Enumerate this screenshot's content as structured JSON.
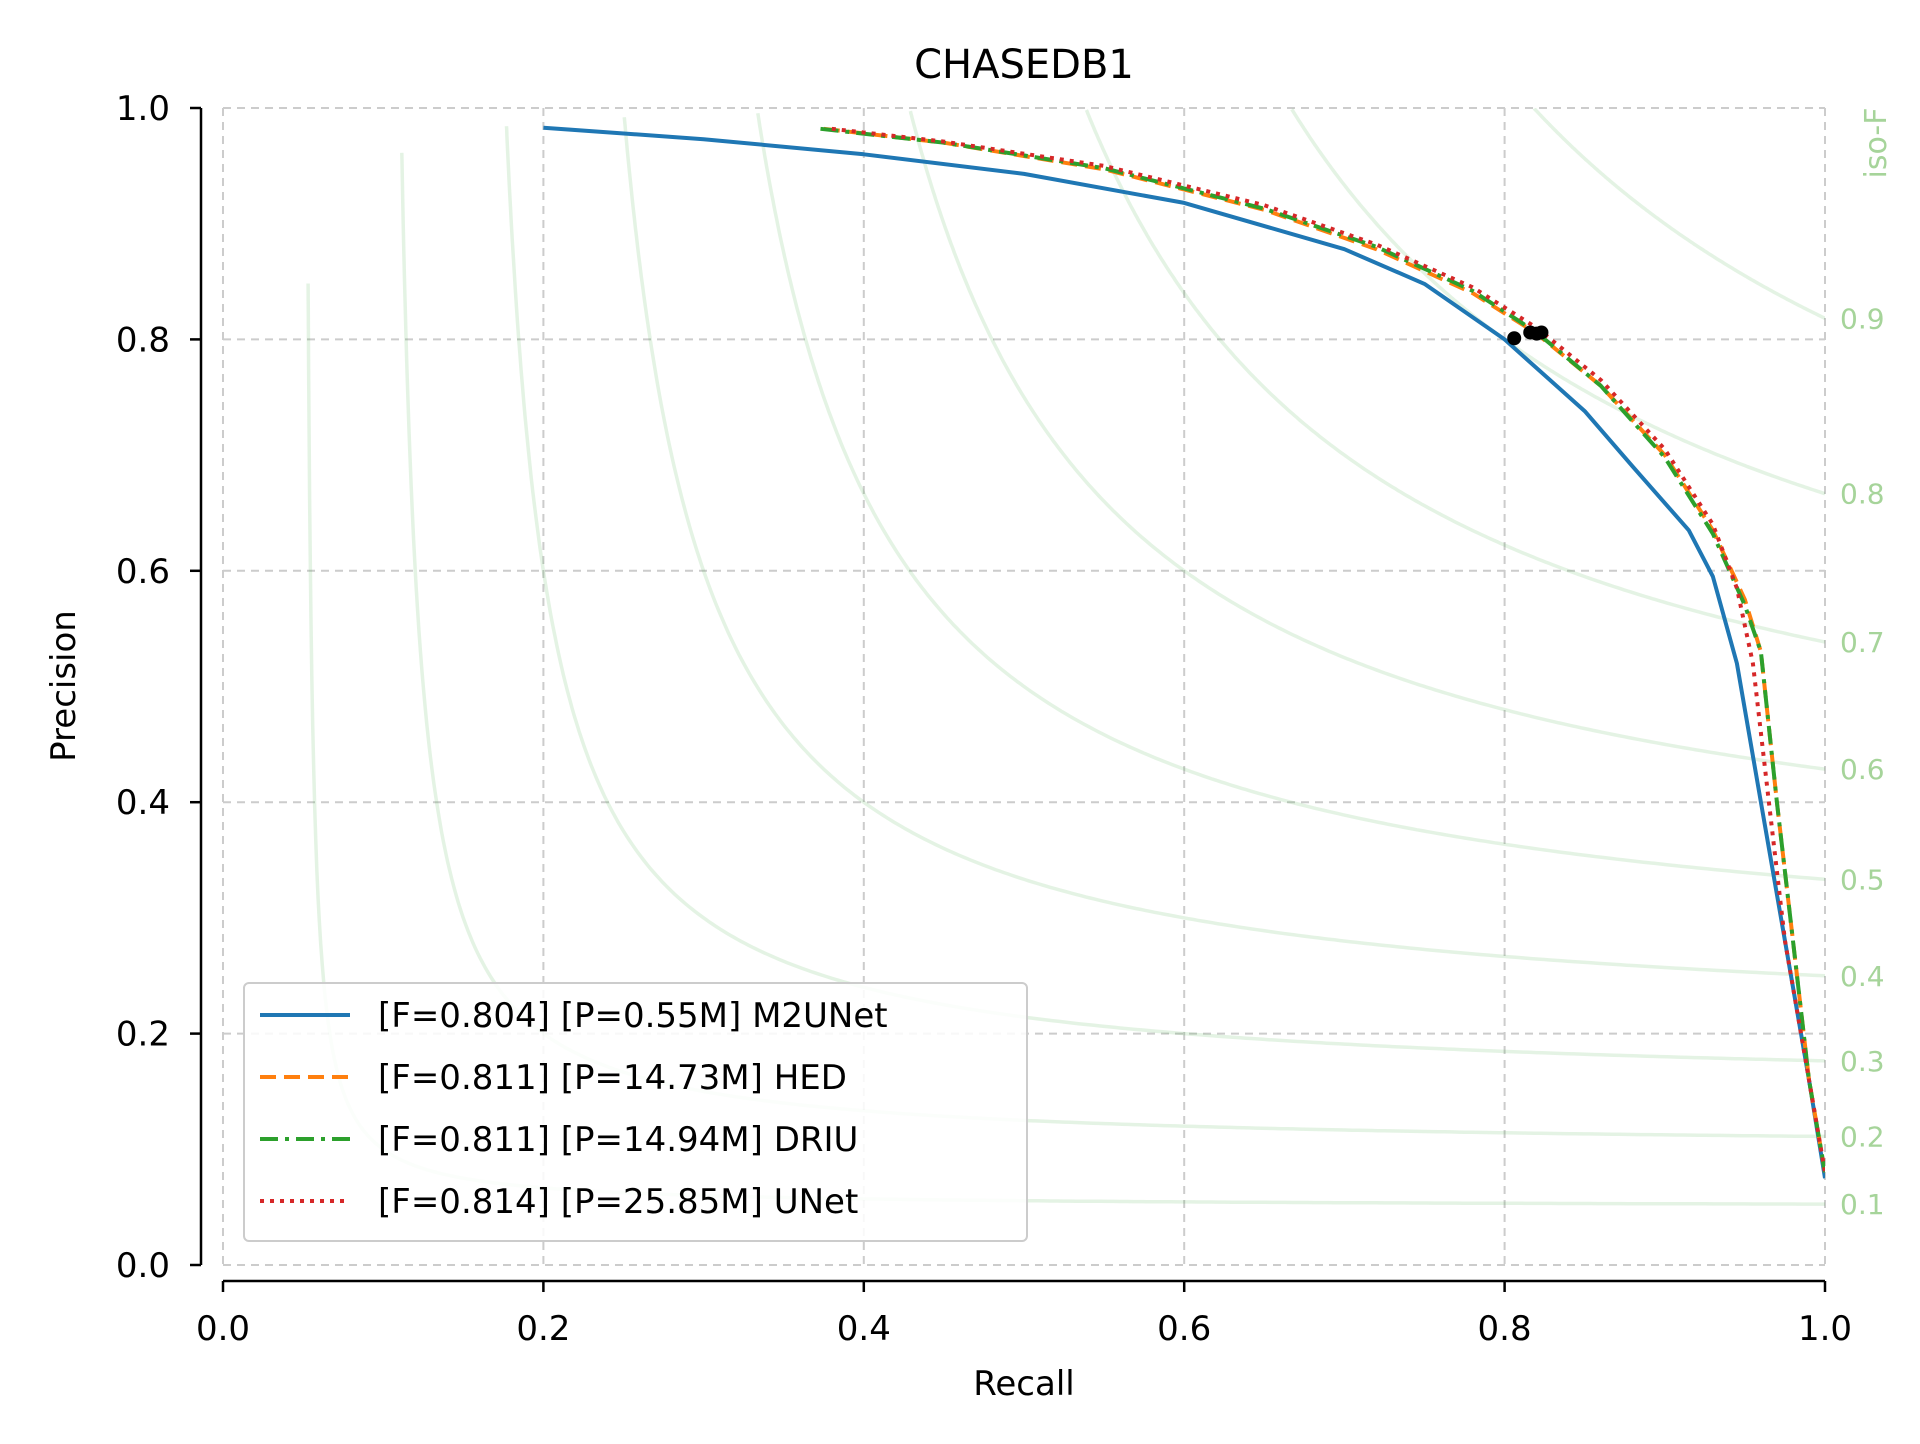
{
  "chart_data": {
    "type": "line",
    "title": "CHASEDB1",
    "xlabel": "Recall",
    "ylabel": "Precision",
    "xlim": [
      0.0,
      1.0
    ],
    "ylim": [
      0.0,
      1.0
    ],
    "xticks": [
      "0.0",
      "0.2",
      "0.4",
      "0.6",
      "0.8",
      "1.0"
    ],
    "yticks": [
      "0.0",
      "0.2",
      "0.4",
      "0.6",
      "0.8",
      "1.0"
    ],
    "grid": true,
    "legend_position": "lower-left",
    "iso_f": {
      "label": "iso-F",
      "color": "#2ca02c",
      "label_color": "#a6d49a",
      "values": [
        0.1,
        0.2,
        0.3,
        0.4,
        0.5,
        0.6,
        0.7,
        0.8,
        0.9
      ],
      "labels": [
        "0.1",
        "0.2",
        "0.3",
        "0.4",
        "0.5",
        "0.6",
        "0.7",
        "0.8",
        "0.9"
      ]
    },
    "series": [
      {
        "name": "[F=0.804] [P=0.55M] M2UNet",
        "color": "#1f77b4",
        "dash": "solid",
        "x": [
          0.2,
          0.3,
          0.4,
          0.5,
          0.6,
          0.7,
          0.75,
          0.8,
          0.85,
          0.88,
          0.915,
          0.93,
          0.945,
          0.96,
          0.975,
          0.99,
          1.0
        ],
        "y": [
          0.983,
          0.973,
          0.96,
          0.943,
          0.918,
          0.878,
          0.848,
          0.8,
          0.738,
          0.69,
          0.635,
          0.595,
          0.52,
          0.4,
          0.28,
          0.16,
          0.075
        ],
        "best_point": [
          0.806,
          0.801
        ]
      },
      {
        "name": "[F=0.811] [P=14.73M] HED",
        "color": "#ff7f0e",
        "dash": "dashed",
        "x": [
          0.375,
          0.45,
          0.55,
          0.65,
          0.72,
          0.78,
          0.82,
          0.86,
          0.9,
          0.93,
          0.95,
          0.96,
          0.97,
          0.98,
          0.99,
          1.0
        ],
        "y": [
          0.982,
          0.97,
          0.947,
          0.912,
          0.878,
          0.84,
          0.805,
          0.76,
          0.7,
          0.635,
          0.575,
          0.53,
          0.4,
          0.28,
          0.16,
          0.08
        ],
        "best_point": [
          0.816,
          0.806
        ]
      },
      {
        "name": "[F=0.811] [P=14.94M] DRIU",
        "color": "#2ca02c",
        "dash": "dashdot",
        "x": [
          0.373,
          0.45,
          0.55,
          0.65,
          0.72,
          0.78,
          0.82,
          0.86,
          0.9,
          0.93,
          0.95,
          0.96,
          0.97,
          0.98,
          0.99,
          1.0
        ],
        "y": [
          0.982,
          0.97,
          0.948,
          0.913,
          0.88,
          0.842,
          0.806,
          0.76,
          0.698,
          0.632,
          0.57,
          0.53,
          0.4,
          0.28,
          0.16,
          0.08
        ],
        "best_point": [
          0.82,
          0.805
        ]
      },
      {
        "name": "[F=0.814] [P=25.85M] UNet",
        "color": "#d62728",
        "dash": "dotted",
        "x": [
          0.38,
          0.45,
          0.55,
          0.65,
          0.72,
          0.78,
          0.82,
          0.86,
          0.9,
          0.93,
          0.945,
          0.955,
          0.965,
          0.975,
          0.99,
          1.0
        ],
        "y": [
          0.982,
          0.971,
          0.95,
          0.916,
          0.882,
          0.845,
          0.81,
          0.765,
          0.705,
          0.64,
          0.585,
          0.52,
          0.4,
          0.28,
          0.16,
          0.08
        ],
        "best_point": [
          0.823,
          0.806
        ]
      }
    ]
  }
}
